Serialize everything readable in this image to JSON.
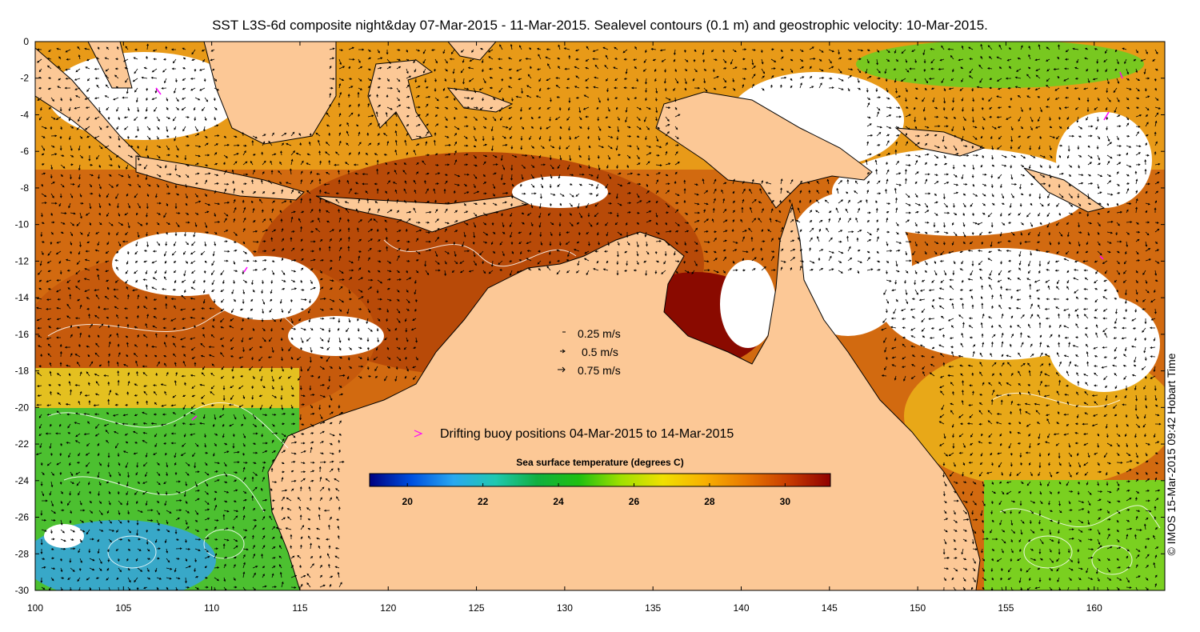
{
  "title": "SST L3S-6d composite night&day 07-Mar-2015 - 11-Mar-2015. Sealevel contours (0.1 m) and geostrophic velocity: 10-Mar-2015.",
  "credit": "© IMOS 15-Mar-2015 09:42 Hobart Time",
  "axes": {
    "x_ticks": [
      "100",
      "105",
      "110",
      "115",
      "120",
      "125",
      "130",
      "135",
      "140",
      "145",
      "150",
      "155",
      "160"
    ],
    "y_ticks": [
      "0",
      "-2",
      "-4",
      "-6",
      "-8",
      "-10",
      "-12",
      "-14",
      "-16",
      "-18",
      "-20",
      "-22",
      "-24",
      "-26",
      "-28",
      "-30"
    ],
    "x_range": [
      100,
      164
    ],
    "y_range": [
      -30,
      0
    ]
  },
  "velocity_legend": [
    {
      "label": "0.25 m/s",
      "speed": 0.25
    },
    {
      "label": "0.5 m/s",
      "speed": 0.5
    },
    {
      "label": "0.75 m/s",
      "speed": 0.75
    }
  ],
  "buoy_legend": {
    "label": "Drifting buoy positions 04-Mar-2015 to 14-Mar-2015",
    "color": "#ff00ff"
  },
  "colorbar": {
    "title": "Sea surface temperature (degrees C)",
    "ticks": [
      "20",
      "22",
      "24",
      "26",
      "28",
      "30"
    ],
    "range": [
      19,
      31.2
    ],
    "colors": [
      "#000080",
      "#0050e0",
      "#2aa8f0",
      "#20c8b0",
      "#10b040",
      "#20c010",
      "#a0e000",
      "#f0e000",
      "#f8b000",
      "#e87800",
      "#c83c00",
      "#900000"
    ]
  },
  "colors": {
    "land": "#fcc896",
    "no_data": "#ffffff",
    "coast": "#000000"
  }
}
